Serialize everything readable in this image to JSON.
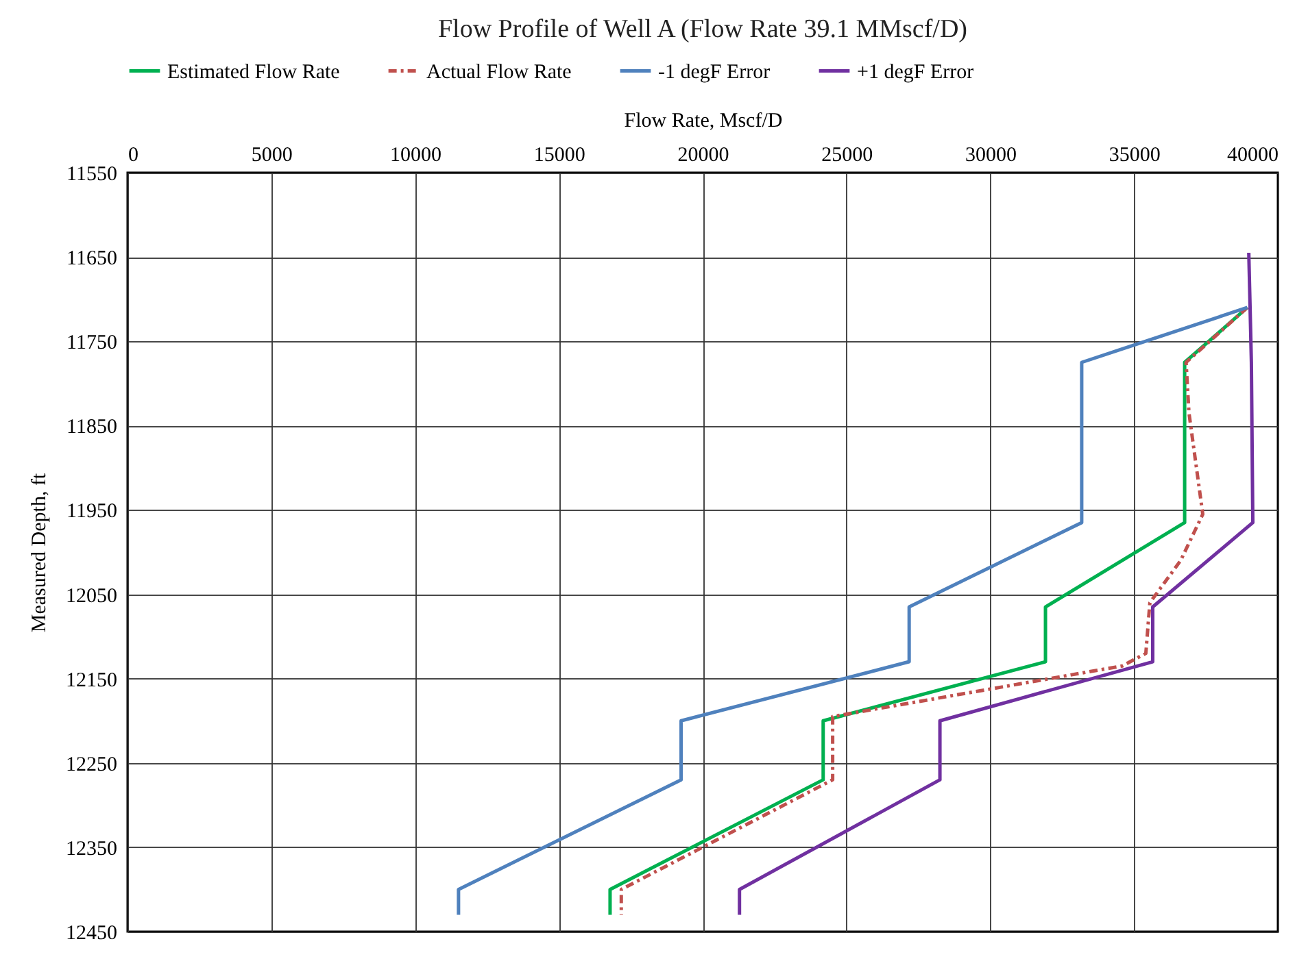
{
  "chart_data": {
    "type": "line",
    "title": "Flow Profile of Well A (Flow Rate 39.1 MMscf/D)",
    "xlabel": "Flow Rate, Mscf/D",
    "ylabel": "Measured Depth, ft",
    "legend": "top",
    "grid": true,
    "xlim": [
      0,
      40000
    ],
    "xticks": [
      0,
      5000,
      10000,
      15000,
      20000,
      25000,
      30000,
      35000,
      40000
    ],
    "ylim": [
      12450,
      11550
    ],
    "yticks": [
      11550,
      11650,
      11750,
      11850,
      11950,
      12050,
      12150,
      12250,
      12350,
      12450
    ],
    "series": [
      {
        "name": "Estimated Flow Rate",
        "color": "#00b050",
        "line_style": "solid",
        "x": [
          38940,
          36760,
          36760,
          31920,
          31920,
          24190,
          24190,
          16780,
          16780
        ],
        "values": [
          11710,
          11775,
          11965,
          12065,
          12130,
          12200,
          12270,
          12400,
          12430
        ]
      },
      {
        "name": "Actual Flow Rate",
        "color": "#c0504d",
        "line_style": "dashdot",
        "x": [
          38940,
          36810,
          36910,
          37150,
          37390,
          36620,
          35550,
          35410,
          34590,
          24520,
          24520,
          17170,
          17170
        ],
        "values": [
          11710,
          11775,
          11835,
          11895,
          11955,
          12010,
          12060,
          12120,
          12135,
          12195,
          12270,
          12400,
          12430
        ]
      },
      {
        "name": "-1 degF Error",
        "color": "#4f81bd",
        "line_style": "solid",
        "x": [
          38940,
          33180,
          33180,
          27180,
          27180,
          19250,
          19250,
          11510,
          11510
        ],
        "values": [
          11710,
          11775,
          11965,
          12065,
          12130,
          12200,
          12270,
          12400,
          12430
        ]
      },
      {
        "name": "+1 degF Error",
        "color": "#7030a0",
        "line_style": "solid",
        "x": [
          38990,
          39080,
          39130,
          35650,
          35650,
          28250,
          28250,
          21280,
          21280
        ],
        "values": [
          11645,
          11775,
          11965,
          12065,
          12130,
          12200,
          12270,
          12400,
          12430
        ]
      }
    ]
  }
}
